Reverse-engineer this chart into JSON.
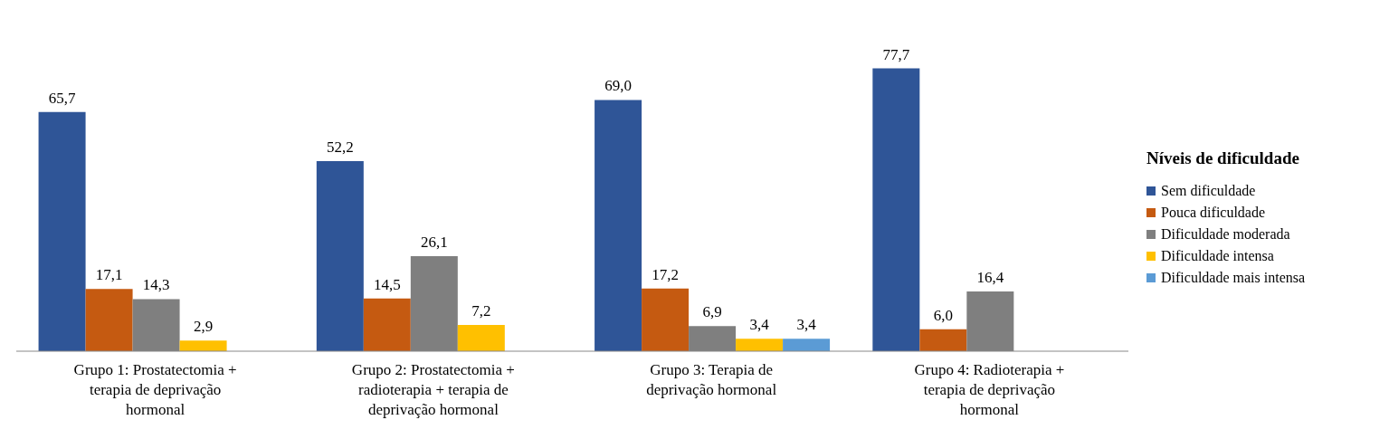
{
  "chart_data": {
    "type": "bar",
    "legend_title": "Níveis de dificuldade",
    "categories": [
      "Grupo 1: Prostatectomia + terapia de deprivação hormonal",
      "Grupo 2: Prostatectomia + radioterapia + terapia de deprivação hormonal",
      "Grupo 3: Terapia de deprivação hormonal",
      "Grupo 4: Radioterapia + terapia de deprivação hormonal"
    ],
    "series": [
      {
        "name": "Sem dificuldade",
        "color": "#2f5597",
        "values": [
          65.7,
          52.2,
          69.0,
          77.7
        ],
        "value_labels": [
          "65,7",
          "52,2",
          "69,0",
          "77,7"
        ]
      },
      {
        "name": "Pouca dificuldade",
        "color": "#c55a11",
        "values": [
          17.1,
          14.5,
          17.2,
          6.0
        ],
        "value_labels": [
          "17,1",
          "14,5",
          "17,2",
          "6,0"
        ]
      },
      {
        "name": "Dificuldade moderada",
        "color": "#7f7f7f",
        "values": [
          14.3,
          26.1,
          6.9,
          16.4
        ],
        "value_labels": [
          "14,3",
          "26,1",
          "6,9",
          "16,4"
        ]
      },
      {
        "name": "Dificuldade intensa",
        "color": "#ffc000",
        "values": [
          2.9,
          7.2,
          3.4,
          null
        ],
        "value_labels": [
          "2,9",
          "7,2",
          "3,4",
          null
        ]
      },
      {
        "name": "Dificuldade mais intensa",
        "color": "#5b9bd5",
        "values": [
          null,
          null,
          3.4,
          null
        ],
        "value_labels": [
          null,
          null,
          "3,4",
          null
        ]
      }
    ],
    "legend": "right"
  }
}
